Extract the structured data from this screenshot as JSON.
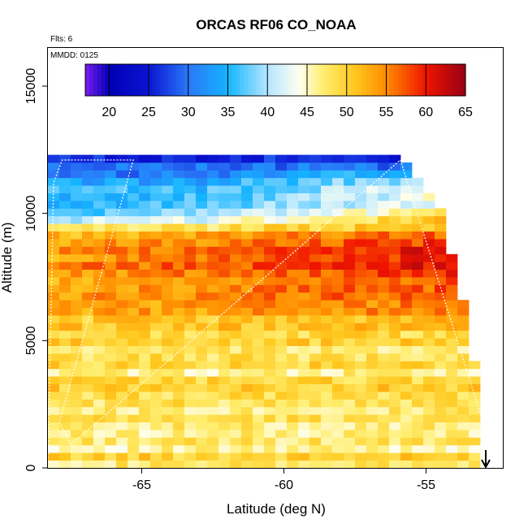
{
  "chart_data": {
    "type": "heatmap",
    "title": "ORCAS RF06 CO_NOAA",
    "flights_note": "Flts: 6",
    "date_note": "MMDD: 0125",
    "xlabel": "Latitude (deg N)",
    "ylabel": "Altitude (m)",
    "xlim": [
      -68.3,
      -52.3
    ],
    "ylim": [
      0,
      16500
    ],
    "x_ticks": [
      -65,
      -60,
      -55
    ],
    "x_tick_labels": [
      "-65",
      "-60",
      "-55"
    ],
    "y_ticks": [
      0,
      5000,
      10000,
      15000
    ],
    "y_tick_labels": [
      "0",
      "5000",
      "10000",
      "15000"
    ],
    "colorbar": {
      "min": 17,
      "max": 65,
      "ticks": [
        20,
        25,
        30,
        35,
        40,
        45,
        50,
        55,
        60,
        65
      ],
      "tick_labels": [
        "20",
        "25",
        "30",
        "35",
        "40",
        "45",
        "50",
        "55",
        "60",
        "65"
      ],
      "stops": [
        {
          "v": 17,
          "c": "#7a1cf0"
        },
        {
          "v": 20,
          "c": "#0000b4"
        },
        {
          "v": 25,
          "c": "#0a14d2"
        },
        {
          "v": 30,
          "c": "#2a78f8"
        },
        {
          "v": 35,
          "c": "#14b4ff"
        },
        {
          "v": 40,
          "c": "#b4e6ff"
        },
        {
          "v": 44,
          "c": "#fffff0"
        },
        {
          "v": 47,
          "c": "#ffee70"
        },
        {
          "v": 51,
          "c": "#ffc81e"
        },
        {
          "v": 55,
          "c": "#ff8c00"
        },
        {
          "v": 60,
          "c": "#f01400"
        },
        {
          "v": 65,
          "c": "#960014"
        }
      ]
    },
    "grid": {
      "lat_start": -68.3,
      "lat_step": 0.4,
      "n_lat": 41,
      "alt_step": 300,
      "n_alt": 41
    },
    "coverage": [
      {
        "alt": 0,
        "lat_max": -52.9
      },
      {
        "alt": 3000,
        "lat_max": -53.1
      },
      {
        "alt": 6000,
        "lat_max": -53.6
      },
      {
        "alt": 9000,
        "lat_max": -54.2
      },
      {
        "alt": 10500,
        "lat_max": -54.6
      },
      {
        "alt": 11500,
        "lat_max": -55.4
      },
      {
        "alt": 12100,
        "lat_max": -55.9
      }
    ],
    "profile_keypoints": [
      {
        "alt": 12500,
        "co": 21
      },
      {
        "alt": 12000,
        "co": 28
      },
      {
        "alt": 11000,
        "co": 33
      },
      {
        "alt": 10000,
        "co": 38
      },
      {
        "alt": 9000,
        "co": 52
      },
      {
        "alt": 8500,
        "co": 56
      },
      {
        "alt": 7500,
        "co": 54
      },
      {
        "alt": 6500,
        "co": 53
      },
      {
        "alt": 5500,
        "co": 50
      },
      {
        "alt": 4500,
        "co": 47
      },
      {
        "alt": 3500,
        "co": 48
      },
      {
        "alt": 2500,
        "co": 49
      },
      {
        "alt": 1500,
        "co": 47
      },
      {
        "alt": 500,
        "co": 48
      },
      {
        "alt": 0,
        "co": 50
      }
    ],
    "flight_track": [
      {
        "lat": -68.3,
        "alt": 0
      },
      {
        "lat": -68.1,
        "alt": 11200
      },
      {
        "lat": -67.8,
        "alt": 12100
      },
      {
        "lat": -65.3,
        "alt": 12100
      },
      {
        "lat": -67.9,
        "alt": 1800
      },
      {
        "lat": -67.5,
        "alt": 900
      },
      {
        "lat": -55.9,
        "alt": 12100
      },
      {
        "lat": -53.0,
        "alt": 1800
      },
      {
        "lat": -52.9,
        "alt": 0
      }
    ],
    "marker": {
      "label": "takeoff/landing arrow",
      "lat": -52.9,
      "alt_top": 700,
      "alt_bottom": 0
    }
  }
}
